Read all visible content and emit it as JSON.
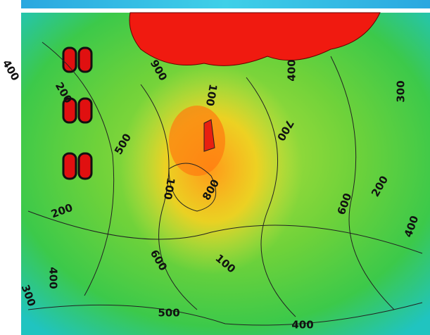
{
  "labels": [
    "900",
    "200",
    "400",
    "500",
    "100",
    "700",
    "400",
    "300",
    "800",
    "100",
    "200",
    "600",
    "400",
    "200",
    "600",
    "100",
    "400",
    "300",
    "500",
    "400"
  ]
}
